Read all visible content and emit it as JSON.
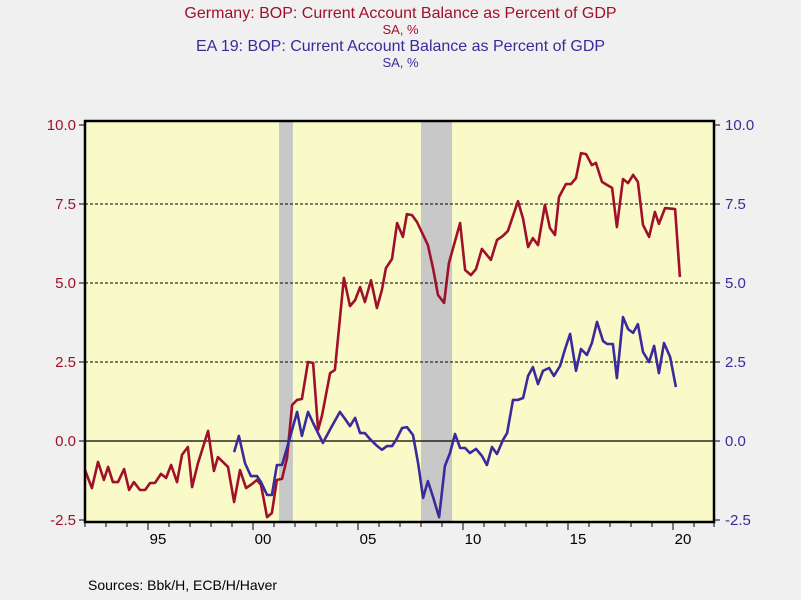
{
  "colors": {
    "germany": "#a0102a",
    "euro_area": "#3a2a9c",
    "plot_bg": "#fafac8",
    "recession": "#c8c8c8",
    "page_bg": "#f0f0f0"
  },
  "chart_data": {
    "type": "line",
    "titles": [
      {
        "title": "Germany: BOP: Current Account Balance as Percent of GDP",
        "subtitle": "SA, %"
      },
      {
        "title": "EA 19: BOP: Current Account Balance as Percent of GDP",
        "subtitle": "SA, %"
      }
    ],
    "xlim": [
      1992,
      2021.95
    ],
    "x_ticks": [
      1995,
      2000,
      2005,
      2010,
      2015,
      2020
    ],
    "x_tick_labels": [
      "95",
      "00",
      "05",
      "10",
      "15",
      "20"
    ],
    "ylim": [
      -2.5,
      10.0
    ],
    "y_ticks": [
      -2.5,
      0.0,
      2.5,
      5.0,
      7.5,
      10.0
    ],
    "y_tick_labels": [
      "-2.5",
      "0.0",
      "2.5",
      "5.0",
      "7.5",
      "10.0"
    ],
    "y_right_tick_labels": [
      "-2.5",
      "0.0",
      "2.5",
      "5.0",
      "7.5",
      "10.0"
    ],
    "gridlines": [
      5.0,
      7.5,
      2.5
    ],
    "zero_line": 0.0,
    "recessions": [
      [
        2001.24,
        2001.9
      ],
      [
        2008.0,
        2009.48
      ]
    ],
    "series": [
      {
        "name": "Germany",
        "axis": "left",
        "points": [
          [
            1992.0,
            -0.92
          ],
          [
            1992.33,
            -1.49
          ],
          [
            1992.62,
            -0.66
          ],
          [
            1992.9,
            -1.23
          ],
          [
            1993.1,
            -0.82
          ],
          [
            1993.33,
            -1.3
          ],
          [
            1993.57,
            -1.3
          ],
          [
            1993.86,
            -0.89
          ],
          [
            1994.1,
            -1.55
          ],
          [
            1994.33,
            -1.3
          ],
          [
            1994.62,
            -1.55
          ],
          [
            1994.86,
            -1.55
          ],
          [
            1995.1,
            -1.33
          ],
          [
            1995.33,
            -1.33
          ],
          [
            1995.62,
            -1.04
          ],
          [
            1995.86,
            -1.17
          ],
          [
            1996.1,
            -0.76
          ],
          [
            1996.38,
            -1.3
          ],
          [
            1996.62,
            -0.44
          ],
          [
            1996.9,
            -0.19
          ],
          [
            1997.1,
            -1.46
          ],
          [
            1997.38,
            -0.7
          ],
          [
            1997.86,
            0.32
          ],
          [
            1998.14,
            -0.95
          ],
          [
            1998.33,
            -0.51
          ],
          [
            1998.81,
            -0.82
          ],
          [
            1999.1,
            -1.93
          ],
          [
            1999.38,
            -0.92
          ],
          [
            1999.67,
            -1.49
          ],
          [
            1999.95,
            -1.36
          ],
          [
            2000.19,
            -1.23
          ],
          [
            2000.38,
            -1.39
          ],
          [
            2000.67,
            -2.41
          ],
          [
            2000.9,
            -2.28
          ],
          [
            2001.14,
            -1.23
          ],
          [
            2001.38,
            -1.2
          ],
          [
            2001.62,
            -0.54
          ],
          [
            2001.86,
            1.14
          ],
          [
            2002.1,
            1.3
          ],
          [
            2002.33,
            1.33
          ],
          [
            2002.62,
            2.5
          ],
          [
            2002.86,
            2.47
          ],
          [
            2003.1,
            0.35
          ],
          [
            2003.29,
            0.82
          ],
          [
            2003.67,
            2.15
          ],
          [
            2003.9,
            2.25
          ],
          [
            2004.33,
            5.16
          ],
          [
            2004.62,
            4.27
          ],
          [
            2004.86,
            4.46
          ],
          [
            2005.1,
            4.87
          ],
          [
            2005.33,
            4.4
          ],
          [
            2005.62,
            5.09
          ],
          [
            2005.9,
            4.21
          ],
          [
            2006.14,
            4.78
          ],
          [
            2006.33,
            5.47
          ],
          [
            2006.62,
            5.76
          ],
          [
            2006.86,
            6.9
          ],
          [
            2007.14,
            6.46
          ],
          [
            2007.33,
            7.18
          ],
          [
            2007.57,
            7.15
          ],
          [
            2007.81,
            6.93
          ],
          [
            2008.33,
            6.2
          ],
          [
            2008.57,
            5.47
          ],
          [
            2008.81,
            4.62
          ],
          [
            2009.1,
            4.37
          ],
          [
            2009.33,
            5.63
          ],
          [
            2009.86,
            6.9
          ],
          [
            2010.1,
            5.41
          ],
          [
            2010.38,
            5.25
          ],
          [
            2010.62,
            5.44
          ],
          [
            2010.9,
            6.08
          ],
          [
            2011.33,
            5.73
          ],
          [
            2011.62,
            6.36
          ],
          [
            2011.9,
            6.49
          ],
          [
            2012.14,
            6.65
          ],
          [
            2012.62,
            7.59
          ],
          [
            2012.86,
            7.03
          ],
          [
            2013.1,
            6.14
          ],
          [
            2013.33,
            6.42
          ],
          [
            2013.57,
            6.2
          ],
          [
            2013.9,
            7.47
          ],
          [
            2014.14,
            6.74
          ],
          [
            2014.38,
            6.52
          ],
          [
            2014.57,
            7.72
          ],
          [
            2014.9,
            8.13
          ],
          [
            2015.14,
            8.13
          ],
          [
            2015.38,
            8.32
          ],
          [
            2015.62,
            9.11
          ],
          [
            2015.86,
            9.08
          ],
          [
            2016.14,
            8.73
          ],
          [
            2016.33,
            8.8
          ],
          [
            2016.62,
            8.2
          ],
          [
            2016.86,
            8.1
          ],
          [
            2017.1,
            8.01
          ],
          [
            2017.33,
            6.77
          ],
          [
            2017.62,
            8.29
          ],
          [
            2017.86,
            8.16
          ],
          [
            2018.1,
            8.42
          ],
          [
            2018.33,
            8.2
          ],
          [
            2018.57,
            6.84
          ],
          [
            2018.86,
            6.46
          ],
          [
            2019.14,
            7.25
          ],
          [
            2019.33,
            6.87
          ],
          [
            2019.62,
            7.37
          ],
          [
            2020.1,
            7.34
          ],
          [
            2020.33,
            5.19
          ]
        ]
      },
      {
        "name": "EA 19",
        "axis": "right",
        "points": [
          [
            1999.1,
            -0.35
          ],
          [
            1999.33,
            0.16
          ],
          [
            1999.62,
            -0.7
          ],
          [
            1999.9,
            -1.11
          ],
          [
            2000.19,
            -1.11
          ],
          [
            2000.38,
            -1.3
          ],
          [
            2000.67,
            -1.71
          ],
          [
            2000.9,
            -1.71
          ],
          [
            2001.14,
            -0.76
          ],
          [
            2001.38,
            -0.76
          ],
          [
            2001.62,
            -0.22
          ],
          [
            2002.1,
            0.92
          ],
          [
            2002.33,
            0.16
          ],
          [
            2002.62,
            0.92
          ],
          [
            2002.86,
            0.57
          ],
          [
            2003.33,
            -0.06
          ],
          [
            2003.71,
            0.41
          ],
          [
            2004.14,
            0.92
          ],
          [
            2004.38,
            0.7
          ],
          [
            2004.62,
            0.47
          ],
          [
            2004.86,
            0.73
          ],
          [
            2005.1,
            0.25
          ],
          [
            2005.33,
            0.25
          ],
          [
            2005.57,
            0.06
          ],
          [
            2005.86,
            -0.13
          ],
          [
            2006.14,
            -0.28
          ],
          [
            2006.38,
            -0.16
          ],
          [
            2006.62,
            -0.16
          ],
          [
            2006.81,
            0.03
          ],
          [
            2007.1,
            0.41
          ],
          [
            2007.33,
            0.44
          ],
          [
            2007.62,
            0.19
          ],
          [
            2007.86,
            -0.7
          ],
          [
            2008.1,
            -1.8
          ],
          [
            2008.33,
            -1.27
          ],
          [
            2008.57,
            -1.77
          ],
          [
            2008.86,
            -2.41
          ],
          [
            2009.14,
            -0.79
          ],
          [
            2009.38,
            -0.38
          ],
          [
            2009.62,
            0.22
          ],
          [
            2009.86,
            -0.22
          ],
          [
            2010.1,
            -0.22
          ],
          [
            2010.33,
            -0.38
          ],
          [
            2010.62,
            -0.25
          ],
          [
            2010.9,
            -0.47
          ],
          [
            2011.14,
            -0.76
          ],
          [
            2011.38,
            -0.19
          ],
          [
            2011.62,
            -0.41
          ],
          [
            2011.9,
            0.03
          ],
          [
            2012.1,
            0.25
          ],
          [
            2012.38,
            1.3
          ],
          [
            2012.62,
            1.3
          ],
          [
            2012.86,
            1.36
          ],
          [
            2013.1,
            2.06
          ],
          [
            2013.33,
            2.34
          ],
          [
            2013.57,
            1.8
          ],
          [
            2013.81,
            2.22
          ],
          [
            2014.1,
            2.31
          ],
          [
            2014.33,
            2.06
          ],
          [
            2014.62,
            2.37
          ],
          [
            2014.86,
            2.91
          ],
          [
            2015.1,
            3.39
          ],
          [
            2015.38,
            2.22
          ],
          [
            2015.62,
            2.91
          ],
          [
            2015.9,
            2.72
          ],
          [
            2016.14,
            3.1
          ],
          [
            2016.38,
            3.77
          ],
          [
            2016.67,
            3.16
          ],
          [
            2016.86,
            3.07
          ],
          [
            2017.14,
            3.07
          ],
          [
            2017.33,
            1.99
          ],
          [
            2017.62,
            3.92
          ],
          [
            2017.86,
            3.54
          ],
          [
            2018.1,
            3.42
          ],
          [
            2018.33,
            3.7
          ],
          [
            2018.57,
            2.82
          ],
          [
            2018.86,
            2.5
          ],
          [
            2019.1,
            3.01
          ],
          [
            2019.33,
            2.15
          ],
          [
            2019.57,
            3.1
          ],
          [
            2019.86,
            2.66
          ],
          [
            2020.14,
            1.71
          ]
        ]
      }
    ],
    "source": "Sources:  Bbk/H, ECB/H/Haver"
  }
}
